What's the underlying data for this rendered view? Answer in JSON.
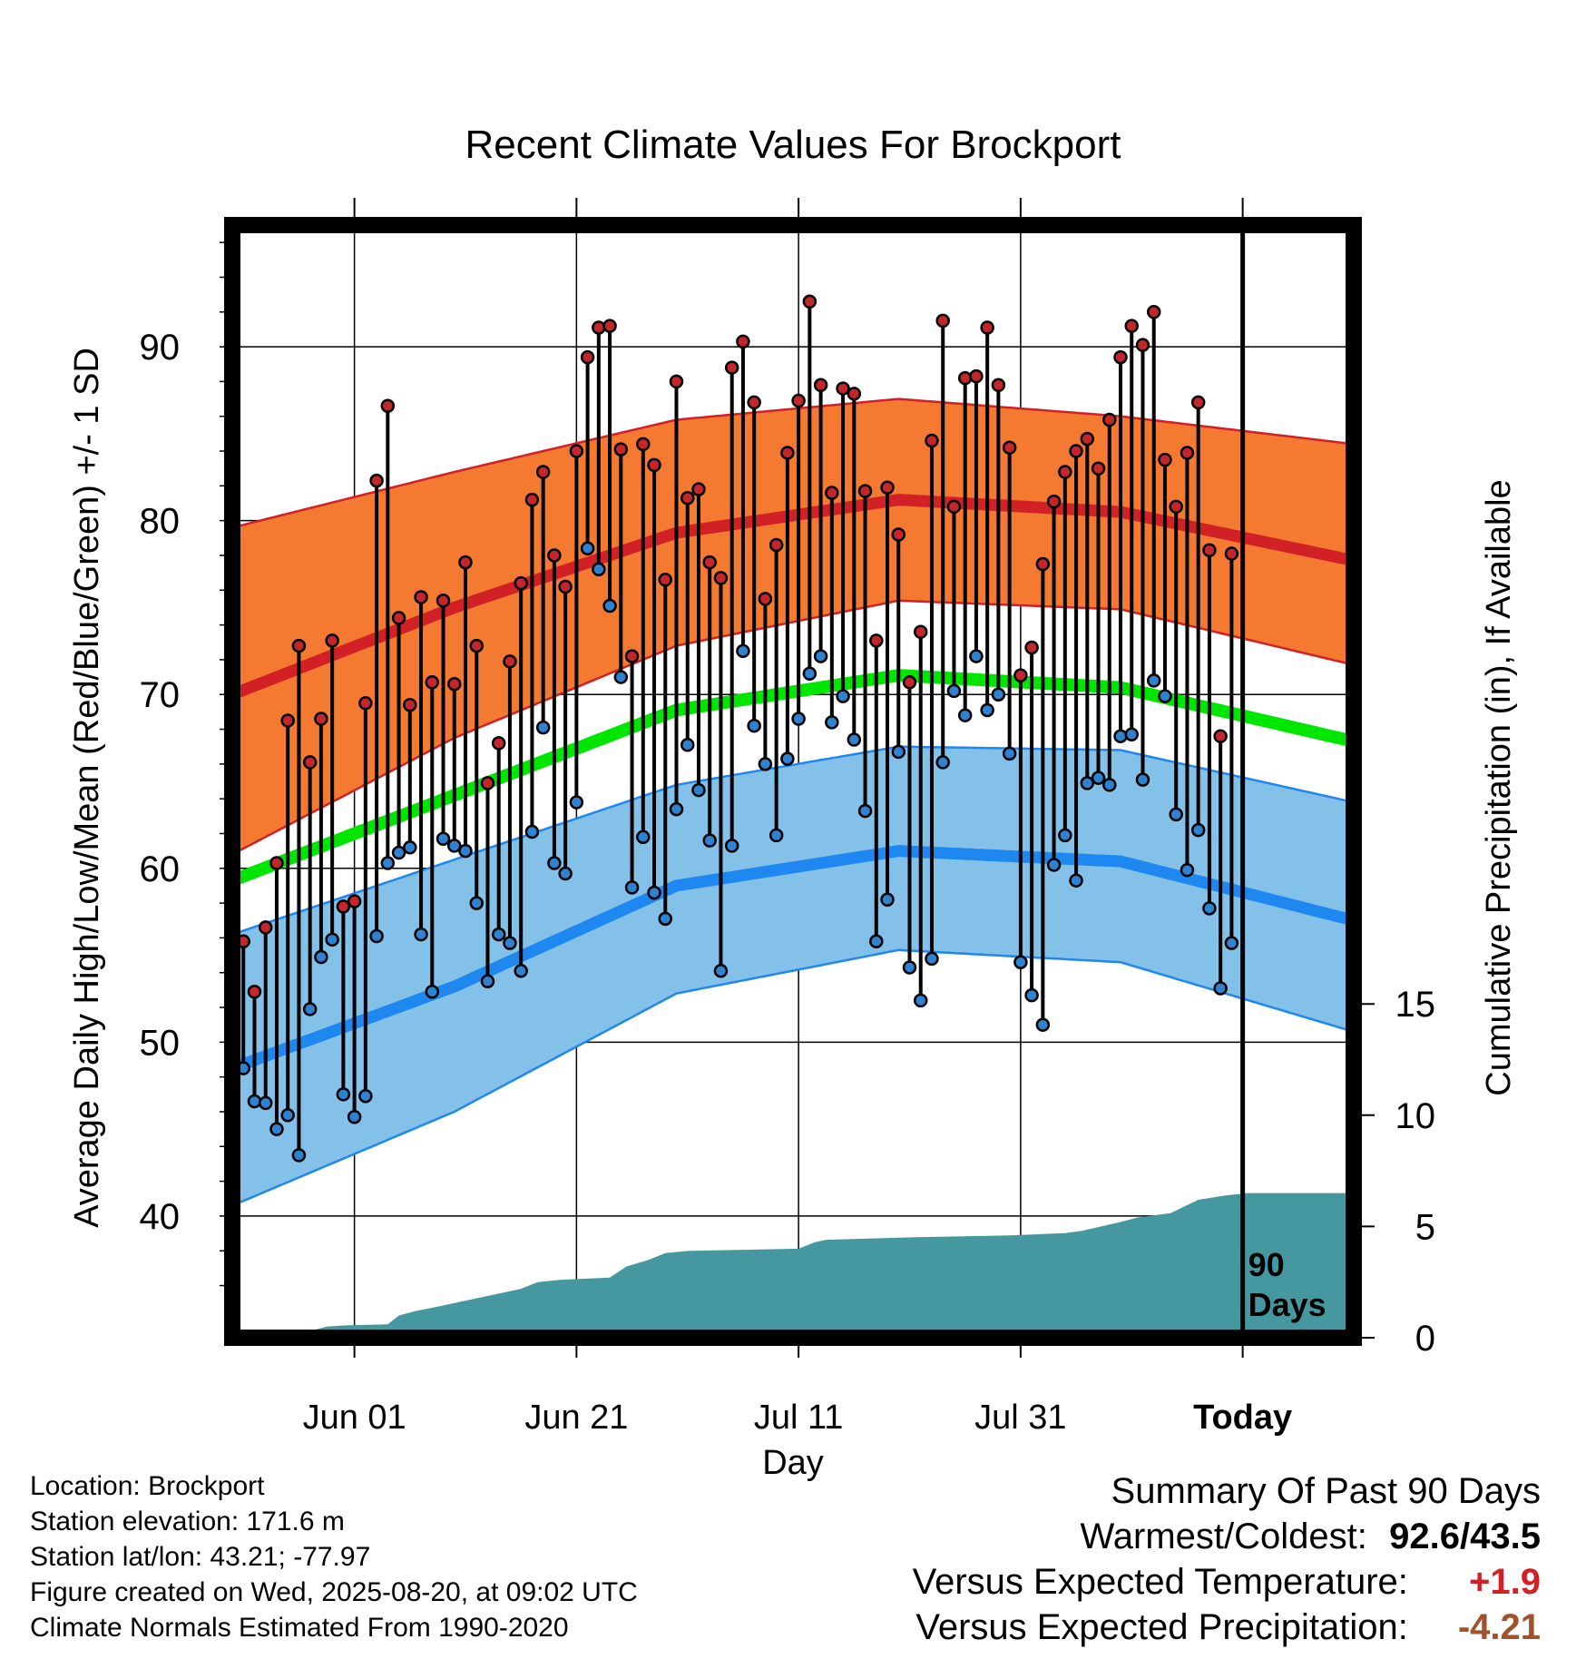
{
  "chart_data": {
    "type": "line",
    "title": "Recent Climate Values For Brockport",
    "xlabel": "Day",
    "ylabel": "Average Daily High/Low/Mean (Red/Blue/Green) +/- 1 SD",
    "y2label": "Cumulative Precipitation (in), If Available",
    "x_tick_labels": [
      "Jun 01",
      "Jun 21",
      "Jul 11",
      "Jul 31",
      "Today"
    ],
    "x_tick_days": [
      11,
      31,
      51,
      71,
      91
    ],
    "xlim": [
      0,
      101
    ],
    "y_ticks": [
      40,
      50,
      60,
      70,
      80,
      90
    ],
    "ylim": [
      33,
      97
    ],
    "y2_ticks": [
      0,
      5,
      10,
      15
    ],
    "y2lim": [
      0,
      50
    ],
    "grid": true,
    "today_marker_label": [
      "90",
      "Days"
    ],
    "normal_high": {
      "x": [
        0,
        20,
        40,
        60,
        80,
        101
      ],
      "mean": [
        70,
        75,
        79.3,
        81.2,
        80.5,
        77.7
      ],
      "upper": [
        79.6,
        82.8,
        85.8,
        87.0,
        86.0,
        84.4
      ],
      "lower": [
        60.8,
        67.5,
        72.8,
        75.4,
        74.9,
        71.7
      ]
    },
    "normal_low": {
      "x": [
        0,
        20,
        40,
        60,
        80,
        101
      ],
      "mean": [
        48.5,
        53.2,
        59.0,
        61.0,
        60.4,
        57.0
      ],
      "upper": [
        56.2,
        60.5,
        64.8,
        67.0,
        66.8,
        63.8
      ],
      "lower": [
        40.6,
        46.0,
        52.8,
        55.3,
        54.6,
        50.6
      ]
    },
    "normal_mean": {
      "x": [
        0,
        20,
        40,
        60,
        80,
        101
      ],
      "values": [
        59.3,
        64.2,
        69.1,
        71.1,
        70.4,
        67.3
      ]
    },
    "daily_high": [
      55.8,
      52.9,
      56.6,
      60.3,
      68.5,
      72.8,
      66.1,
      68.6,
      73.1,
      57.8,
      58.1,
      69.5,
      82.3,
      86.6,
      74.4,
      69.4,
      75.6,
      70.7,
      75.4,
      70.6,
      77.6,
      72.8,
      64.9,
      67.2,
      71.9,
      76.4,
      81.2,
      82.8,
      78.0,
      76.2,
      84.0,
      89.4,
      91.1,
      91.2,
      84.1,
      72.2,
      84.4,
      83.2,
      76.6,
      88.0,
      81.3,
      81.8,
      77.6,
      76.7,
      88.8,
      90.3,
      86.8,
      75.5,
      78.6,
      83.9,
      86.9,
      92.6,
      87.8,
      81.6,
      87.6,
      87.3,
      81.7,
      73.1,
      81.9,
      79.2,
      70.7,
      73.6,
      84.6,
      91.5,
      80.8,
      88.2,
      88.3,
      91.1,
      87.8,
      84.2,
      71.1,
      72.7,
      77.5,
      81.1,
      82.8,
      84.0,
      84.7,
      83.0,
      85.8,
      89.4,
      91.2,
      90.1,
      92.0,
      83.5,
      80.8,
      83.9,
      86.8,
      78.3,
      67.6,
      78.1
    ],
    "daily_low": [
      48.5,
      46.6,
      46.5,
      45.0,
      45.8,
      43.5,
      51.9,
      54.9,
      55.9,
      47.0,
      45.7,
      46.9,
      56.1,
      60.3,
      60.9,
      61.2,
      56.2,
      52.9,
      61.7,
      61.3,
      61.0,
      58.0,
      53.5,
      56.2,
      55.7,
      54.1,
      62.1,
      68.1,
      60.3,
      59.7,
      63.8,
      78.4,
      77.2,
      75.1,
      71.0,
      58.9,
      61.8,
      58.6,
      57.1,
      63.4,
      67.1,
      64.5,
      61.6,
      54.1,
      61.3,
      72.5,
      68.2,
      66.0,
      61.9,
      66.3,
      68.6,
      71.2,
      72.2,
      68.4,
      69.9,
      67.4,
      63.3,
      55.8,
      58.2,
      66.7,
      54.3,
      52.4,
      54.8,
      66.1,
      70.2,
      68.8,
      72.2,
      69.1,
      70.0,
      66.6,
      54.6,
      52.7,
      51.0,
      60.2,
      61.9,
      59.3,
      64.9,
      65.2,
      64.8,
      67.6,
      67.7,
      65.1,
      70.8,
      69.9,
      63.1,
      59.9,
      62.2,
      57.7,
      53.1,
      55.7
    ],
    "cumulative_precip": {
      "x": [
        0,
        1.5,
        5,
        7,
        8.5,
        10,
        14,
        15,
        16.5,
        18.5,
        26,
        27.5,
        29.5,
        34,
        35.5,
        37.5,
        39,
        41,
        51,
        52.5,
        53.5,
        60,
        70,
        75,
        76.5,
        80,
        81.5,
        83,
        84.5,
        87,
        89.5,
        91.5,
        101
      ],
      "values": [
        0,
        0.02,
        0.05,
        0.3,
        0.5,
        0.55,
        0.6,
        1.0,
        1.2,
        1.4,
        2.2,
        2.5,
        2.6,
        2.7,
        3.2,
        3.5,
        3.8,
        3.9,
        4.0,
        4.3,
        4.4,
        4.5,
        4.6,
        4.7,
        4.8,
        5.2,
        5.4,
        5.5,
        5.6,
        6.2,
        6.4,
        6.5,
        6.5
      ]
    },
    "colors": {
      "high_band": "#f47a32",
      "high_line": "#d12026",
      "low_band": "#84c1e8",
      "low_line": "#1e88f0",
      "mean_line": "#00e600",
      "precip_fill": "#4698a0",
      "high_point": "#c4272b",
      "low_point": "#2f82d0"
    }
  },
  "footer": {
    "location": "Location: Brockport",
    "elevation": "Station elevation: 171.6 m",
    "latlon": "Station lat/lon: 43.21; -77.97",
    "created": "Figure created on Wed, 2025-08-20, at 09:02 UTC",
    "normals": "Climate Normals Estimated From 1990-2020"
  },
  "summary": {
    "title": "Summary Of Past 90 Days",
    "warmest_coldest_label": "Warmest/Coldest:",
    "warmest_coldest_value": "92.6/43.5",
    "temp_label": "Versus Expected Temperature:",
    "temp_value": "+1.9",
    "temp_color": "#d12026",
    "precip_label": "Versus Expected Precipitation:",
    "precip_value": "-4.21",
    "precip_color": "#a0522d"
  }
}
